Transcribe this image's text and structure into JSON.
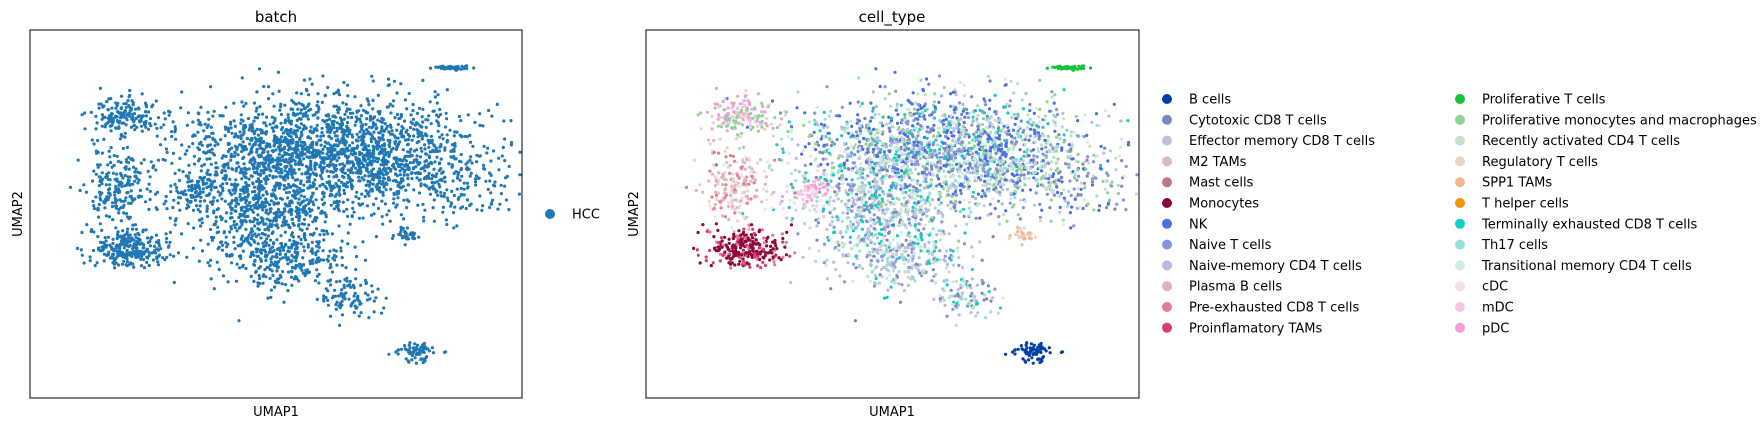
{
  "chart_data": [
    {
      "type": "scatter",
      "title": "batch",
      "xlabel": "UMAP1",
      "ylabel": "UMAP2",
      "grid": false,
      "ticks": false,
      "legend": {
        "placement": "right",
        "columns": 1
      },
      "series": [
        {
          "name": "HCC",
          "color": "#1f77b4"
        }
      ]
    },
    {
      "type": "scatter",
      "title": "cell_type",
      "xlabel": "UMAP1",
      "ylabel": "UMAP2",
      "grid": false,
      "ticks": false,
      "legend": {
        "placement": "right",
        "columns": 2
      },
      "series": [
        {
          "name": "B cells",
          "color": "#023fa5"
        },
        {
          "name": "Cytotoxic CD8 T cells",
          "color": "#7d87b9"
        },
        {
          "name": "Effector memory CD8 T cells",
          "color": "#bec1d4"
        },
        {
          "name": "M2 TAMs",
          "color": "#d6bcc0"
        },
        {
          "name": "Mast cells",
          "color": "#bb7784"
        },
        {
          "name": "Monocytes",
          "color": "#8e063b"
        },
        {
          "name": "NK",
          "color": "#4a6fe3"
        },
        {
          "name": "Naive T cells",
          "color": "#8595e1"
        },
        {
          "name": "Naive-memory CD4 T cells",
          "color": "#b5bbe3"
        },
        {
          "name": "Plasma B cells",
          "color": "#e6afb9"
        },
        {
          "name": "Pre-exhausted CD8 T cells",
          "color": "#e07b91"
        },
        {
          "name": "Proinflamatory TAMs",
          "color": "#d33f6a"
        },
        {
          "name": "Proliferative T cells",
          "color": "#11c638"
        },
        {
          "name": "Proliferative monocytes and macrophages",
          "color": "#8dd593"
        },
        {
          "name": "Recently activated CD4 T cells",
          "color": "#c6dec7"
        },
        {
          "name": "Regulatory T cells",
          "color": "#ead3c6"
        },
        {
          "name": "SPP1 TAMs",
          "color": "#f0b98d"
        },
        {
          "name": "T helper cells",
          "color": "#ef9708"
        },
        {
          "name": "Terminally exhausted CD8 T cells",
          "color": "#0fcfc0"
        },
        {
          "name": "Th17 cells",
          "color": "#9cded6"
        },
        {
          "name": "Transitional memory CD4 T cells",
          "color": "#d5eae7"
        },
        {
          "name": "cDC",
          "color": "#f3e1eb"
        },
        {
          "name": "mDC",
          "color": "#f6c4e1"
        },
        {
          "name": "pDC",
          "color": "#f79cd4"
        }
      ]
    }
  ]
}
